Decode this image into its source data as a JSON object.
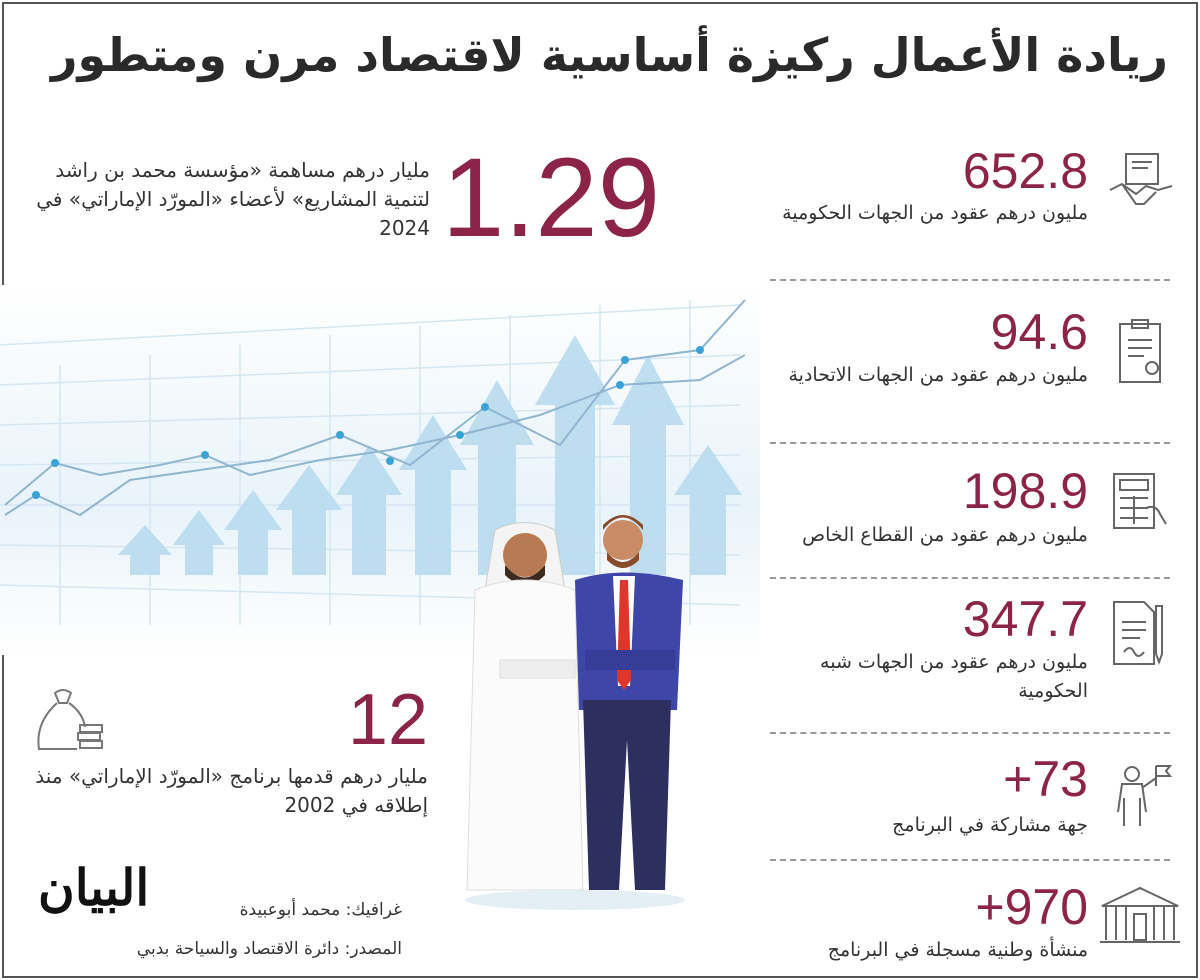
{
  "title": "ريادة الأعمال ركيزة أساسية لاقتصاد مرن ومتطور",
  "accent_color": "#8b2448",
  "headline": {
    "value": "1.29",
    "text": "مليار درهم مساهمة «مؤسسة محمد بن راشد لتنمية المشاريع» لأعضاء «المورّد الإماراتي» في 2024"
  },
  "program": {
    "value": "12",
    "text": "مليار درهم قدمها برنامج «المورّد الإماراتي» منذ إطلاقه في 2002",
    "icon": "money-bag-icon"
  },
  "stats": [
    {
      "value": "652.8",
      "label": "مليون درهم عقود من الجهات الحكومية",
      "icon": "handshake-contract-icon"
    },
    {
      "value": "94.6",
      "label": "مليون درهم عقود من الجهات الاتحادية",
      "icon": "certificate-icon"
    },
    {
      "value": "198.9",
      "label": "مليون درهم عقود من القطاع الخاص",
      "icon": "calculator-hand-icon"
    },
    {
      "value": "347.7",
      "label": "مليون درهم عقود من الجهات شبه الحكومية",
      "icon": "document-pen-icon"
    },
    {
      "value": "+73",
      "label": "جهة مشاركة في البرنامج",
      "icon": "businessman-flag-icon"
    },
    {
      "value": "+970",
      "label": "منشأة وطنية مسجلة في البرنامج",
      "icon": "building-icon"
    }
  ],
  "footer": {
    "logo": "البيان",
    "credit": "غرافيك: محمد أبوعبيدة",
    "source": "المصدر: دائرة الاقتصاد والسياحة بدبي"
  }
}
